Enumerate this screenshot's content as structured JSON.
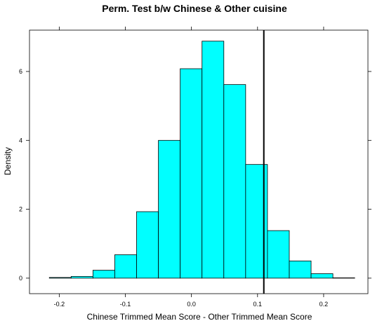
{
  "chart_data": {
    "type": "bar",
    "title": "Perm. Test b/w Chinese & Other cuisine",
    "xlabel": "Chinese Trimmed Mean Score - Other Trimmed Mean Score",
    "ylabel": "Density",
    "xlim": [
      -0.245,
      0.267
    ],
    "ylim": [
      -0.45,
      7.2
    ],
    "xticks": [
      -0.2,
      -0.1,
      0.0,
      0.1,
      0.2
    ],
    "xtick_labels": [
      "-0.2",
      "-0.1",
      "0.0",
      "0.1",
      "0.2"
    ],
    "yticks": [
      0,
      2,
      4,
      6
    ],
    "ytick_labels": [
      "0",
      "2",
      "4",
      "6"
    ],
    "bins": [
      {
        "x0": -0.215,
        "x1": -0.182,
        "density": 0.02
      },
      {
        "x0": -0.182,
        "x1": -0.149,
        "density": 0.05
      },
      {
        "x0": -0.149,
        "x1": -0.116,
        "density": 0.23
      },
      {
        "x0": -0.116,
        "x1": -0.083,
        "density": 0.68
      },
      {
        "x0": -0.083,
        "x1": -0.05,
        "density": 1.93
      },
      {
        "x0": -0.05,
        "x1": -0.017,
        "density": 4.0
      },
      {
        "x0": -0.017,
        "x1": 0.016,
        "density": 6.08
      },
      {
        "x0": 0.016,
        "x1": 0.049,
        "density": 6.88
      },
      {
        "x0": 0.049,
        "x1": 0.082,
        "density": 5.62
      },
      {
        "x0": 0.082,
        "x1": 0.115,
        "density": 3.3
      },
      {
        "x0": 0.115,
        "x1": 0.148,
        "density": 1.38
      },
      {
        "x0": 0.148,
        "x1": 0.181,
        "density": 0.5
      },
      {
        "x0": 0.181,
        "x1": 0.214,
        "density": 0.13
      },
      {
        "x0": 0.214,
        "x1": 0.247,
        "density": 0.01
      }
    ],
    "observed_line_x": 0.1095,
    "grid": false,
    "colors": {
      "bar_fill": "#00ffff",
      "bar_stroke": "#000000"
    }
  }
}
